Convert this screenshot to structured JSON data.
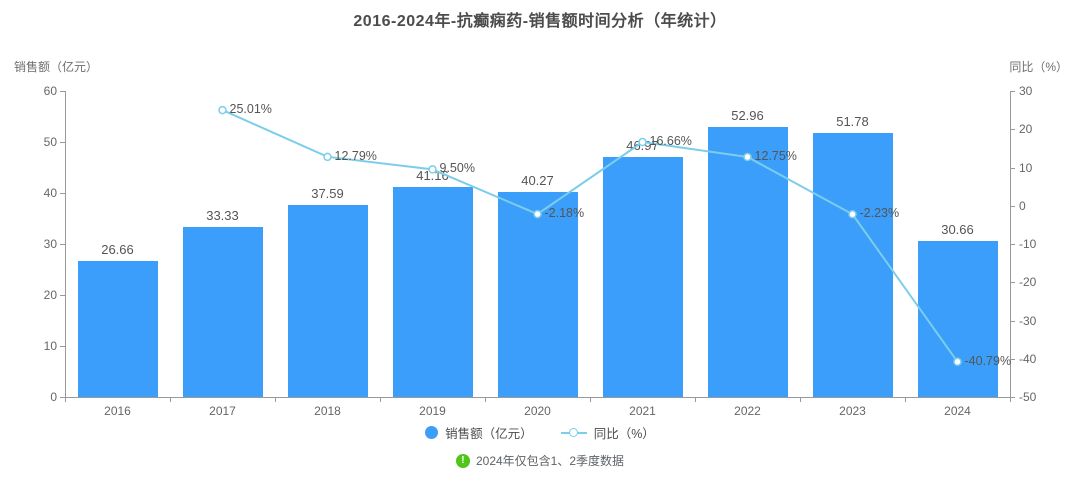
{
  "chart": {
    "title": "2016-2024年-抗癫痫药-销售额时间分析（年统计）"
  },
  "legend": {
    "bar_label": "销售额（亿元）",
    "line_label": "同比（%）"
  },
  "footnote": {
    "icon_glyph": "!",
    "text": "2024年仅包含1、2季度数据",
    "icon_color": "#52c41a"
  },
  "colors": {
    "bar": "#3b9efa",
    "line": "#7ccdeb",
    "axis": "#999999",
    "tick_text": "#666666",
    "value_text": "#555555"
  },
  "chart_data": {
    "type": "bar",
    "title": "2016-2024年-抗癫痫药-销售额时间分析（年统计）",
    "categories": [
      "2016",
      "2017",
      "2018",
      "2019",
      "2020",
      "2021",
      "2022",
      "2023",
      "2024"
    ],
    "series": [
      {
        "name": "销售额（亿元）",
        "type": "bar",
        "axis": "left",
        "color": "#3b9efa",
        "values": [
          26.66,
          33.33,
          37.59,
          41.16,
          40.27,
          46.97,
          52.96,
          51.78,
          30.66
        ]
      },
      {
        "name": "同比（%）",
        "type": "line",
        "axis": "right",
        "color": "#7ccdeb",
        "values": [
          null,
          25.01,
          12.79,
          9.5,
          -2.18,
          16.66,
          12.75,
          -2.23,
          -40.79
        ],
        "label_suffix": "%"
      }
    ],
    "left_axis": {
      "name": "销售额（亿元）",
      "min": 0,
      "max": 60,
      "ticks": [
        0,
        10,
        20,
        30,
        40,
        50,
        60
      ]
    },
    "right_axis": {
      "name": "同比（%）",
      "min": -50,
      "max": 30,
      "ticks": [
        -50,
        -40,
        -30,
        -20,
        -10,
        0,
        10,
        20,
        30
      ]
    },
    "grid": false,
    "legend_position": "bottom"
  }
}
